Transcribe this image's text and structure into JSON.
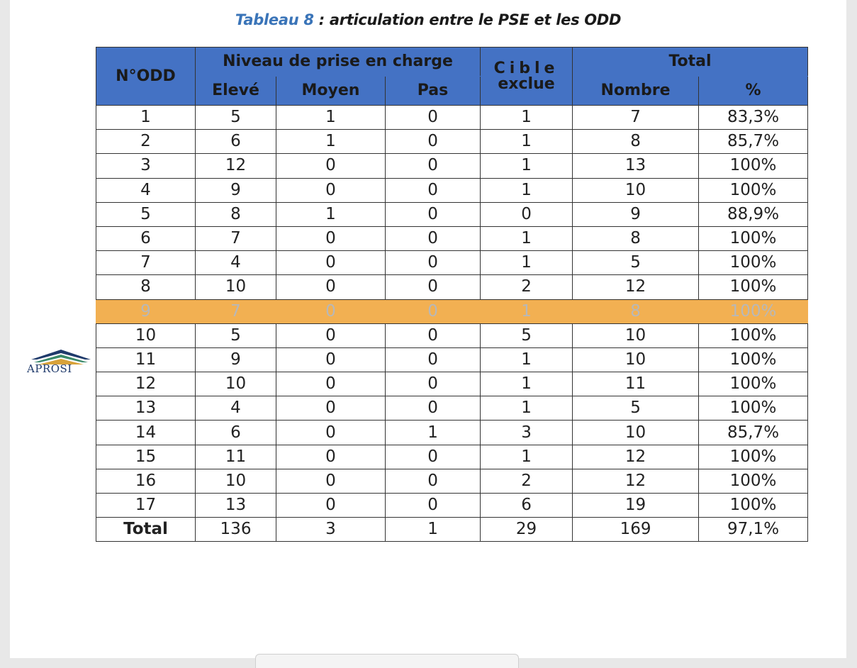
{
  "caption": {
    "number": "Tableau 8",
    "text": " : articulation entre le PSE et les ODD"
  },
  "logo": {
    "text": "APROSI"
  },
  "table": {
    "headers": {
      "odd": "N°ODD",
      "niveau": "Niveau de prise en charge",
      "eleve": "Elevé",
      "moyen": "Moyen",
      "pas": "Pas",
      "cible_line1": "Cible",
      "cible_line2": "exclue",
      "total": "Total",
      "nombre": "Nombre",
      "pct": "%"
    },
    "rows": [
      [
        "1",
        "5",
        "1",
        "0",
        "1",
        "7",
        "83,3%"
      ],
      [
        "2",
        "6",
        "1",
        "0",
        "1",
        "8",
        "85,7%"
      ],
      [
        "3",
        "12",
        "0",
        "0",
        "1",
        "13",
        "100%"
      ],
      [
        "4",
        "9",
        "0",
        "0",
        "1",
        "10",
        "100%"
      ],
      [
        "5",
        "8",
        "1",
        "0",
        "0",
        "9",
        "88,9%"
      ],
      [
        "6",
        "7",
        "0",
        "0",
        "1",
        "8",
        "100%"
      ],
      [
        "7",
        "4",
        "0",
        "0",
        "1",
        "5",
        "100%"
      ],
      [
        "8",
        "10",
        "0",
        "0",
        "2",
        "12",
        "100%"
      ],
      [
        "9",
        "7",
        "0",
        "0",
        "1",
        "8",
        "100%"
      ],
      [
        "10",
        "5",
        "0",
        "0",
        "5",
        "10",
        "100%"
      ],
      [
        "11",
        "9",
        "0",
        "0",
        "1",
        "10",
        "100%"
      ],
      [
        "12",
        "10",
        "0",
        "0",
        "1",
        "11",
        "100%"
      ],
      [
        "13",
        "4",
        "0",
        "0",
        "1",
        "5",
        "100%"
      ],
      [
        "14",
        "6",
        "0",
        "1",
        "3",
        "10",
        "85,7%"
      ],
      [
        "15",
        "11",
        "0",
        "0",
        "1",
        "12",
        "100%"
      ],
      [
        "16",
        "10",
        "0",
        "0",
        "2",
        "12",
        "100%"
      ],
      [
        "17",
        "13",
        "0",
        "0",
        "6",
        "19",
        "100%"
      ]
    ],
    "highlighted_row": 8,
    "highlight_color": "#f2b052",
    "header_color": "#4472c4",
    "total_row": [
      "Total",
      "136",
      "3",
      "1",
      "29",
      "169",
      "97,1%"
    ]
  }
}
